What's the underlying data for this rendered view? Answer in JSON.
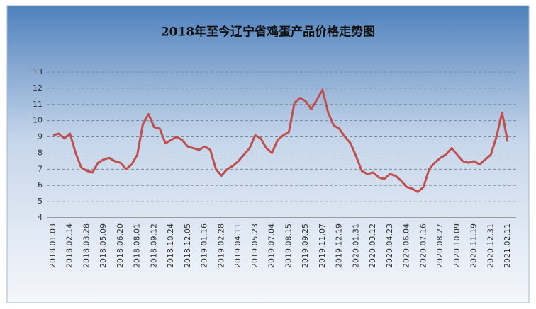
{
  "chart_data": {
    "type": "line",
    "title": "2018年至今辽宁省鸡蛋产品价格走势图",
    "categories": [
      "2018.01.03",
      null,
      null,
      "2018.02.14",
      null,
      null,
      "2018.03.28",
      null,
      null,
      "2018.05.09",
      null,
      null,
      "2018.06.20",
      null,
      null,
      "2018.08.01",
      null,
      null,
      "2018.09.12",
      null,
      null,
      "2018.10.24",
      null,
      null,
      "2018.12.05",
      null,
      null,
      "2019.01.16",
      null,
      null,
      "2019.02.28",
      null,
      null,
      "2019.04.11",
      null,
      null,
      "2019.05.23",
      null,
      null,
      "2019.07.04",
      null,
      null,
      "2019.08.15",
      null,
      null,
      "2019.09.25",
      null,
      null,
      "2019.11.07",
      null,
      null,
      "2019.12.19",
      null,
      null,
      "2020.01.31",
      null,
      null,
      "2020.03.12",
      null,
      null,
      "2020.04.23",
      null,
      null,
      "2020.06.04",
      null,
      null,
      "2020.07.16",
      null,
      null,
      "2020.08.27",
      null,
      null,
      "2020.10.09",
      null,
      null,
      "2020.11.19",
      null,
      null,
      "2020.12.31",
      null,
      null,
      "2021.02.11"
    ],
    "series": [
      {
        "color": "#c0504d",
        "values": [
          9.1,
          9.2,
          8.9,
          9.2,
          8.0,
          7.1,
          6.9,
          6.8,
          7.4,
          7.6,
          7.7,
          7.5,
          7.4,
          7.0,
          7.3,
          7.9,
          9.8,
          10.4,
          9.6,
          9.5,
          8.6,
          8.8,
          9.0,
          8.8,
          8.4,
          8.3,
          8.2,
          8.4,
          8.2,
          7.0,
          6.6,
          7.0,
          7.2,
          7.5,
          7.9,
          8.3,
          9.1,
          8.9,
          8.3,
          8.0,
          8.8,
          9.1,
          9.3,
          11.1,
          11.4,
          11.2,
          10.7,
          11.3,
          11.9,
          10.5,
          9.7,
          9.5,
          9.0,
          8.6,
          7.8,
          6.9,
          6.7,
          6.8,
          6.5,
          6.4,
          6.7,
          6.6,
          6.3,
          5.9,
          5.8,
          5.6,
          5.9,
          7.0,
          7.4,
          7.7,
          7.9,
          8.3,
          7.9,
          7.5,
          7.4,
          7.5,
          7.3,
          7.6,
          7.9,
          9.0,
          10.5,
          8.7
        ]
      }
    ],
    "ylim": [
      4,
      13
    ],
    "yticks": [
      4,
      5,
      6,
      7,
      8,
      9,
      10,
      11,
      12,
      13
    ],
    "grid": true
  }
}
